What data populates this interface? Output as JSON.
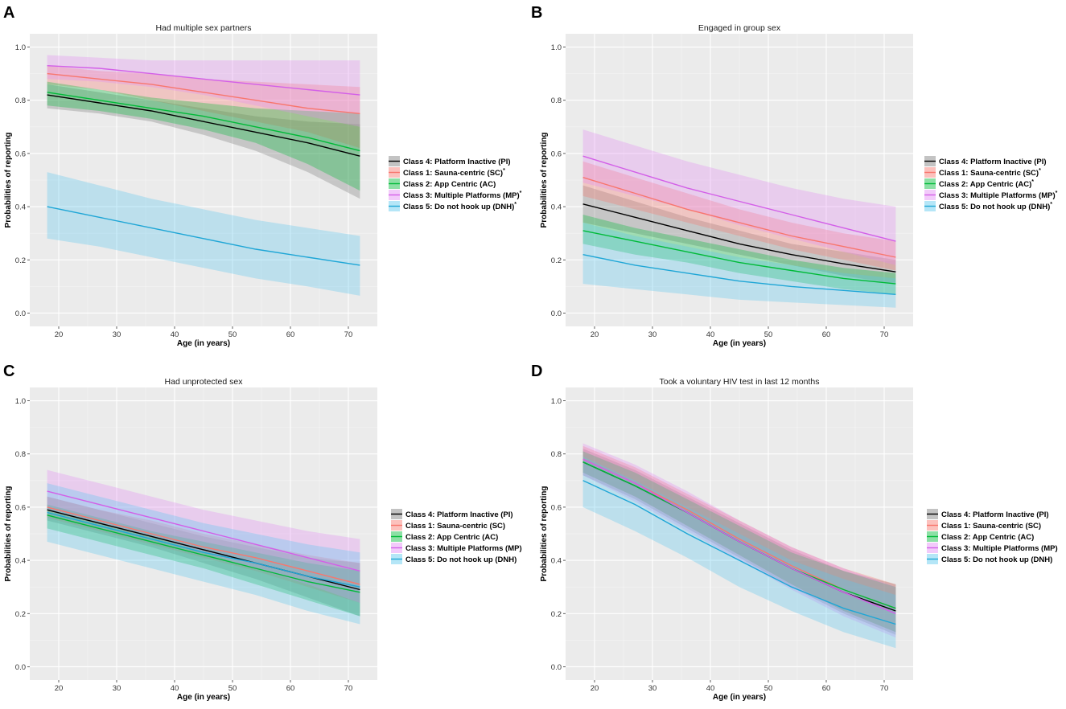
{
  "chart_data": [
    {
      "panel": "A",
      "type": "line",
      "title": "Had multiple sex partners",
      "xlabel": "Age (in years)",
      "ylabel": "Probabilities of reporting",
      "xlim": [
        15,
        75
      ],
      "ylim": [
        -0.05,
        1.05
      ],
      "xticks": [
        20,
        30,
        40,
        50,
        60,
        70
      ],
      "yticks": [
        0.0,
        0.2,
        0.4,
        0.6,
        0.8,
        1.0
      ],
      "tick_labels_y": [
        "0.0",
        "0.2",
        "0.4",
        "0.6",
        "0.8",
        "1.0"
      ],
      "tick_labels_x": [
        "20",
        "30",
        "40",
        "50",
        "60",
        "70"
      ],
      "grid": true,
      "legend_position": "right",
      "x": [
        18,
        27,
        36,
        45,
        54,
        63,
        72
      ],
      "series": [
        {
          "name": "Class 4: Platform Inactive (PI)",
          "star": false,
          "color": "#000000",
          "fill": "#7a7a7a",
          "values": [
            0.82,
            0.79,
            0.76,
            0.72,
            0.68,
            0.64,
            0.59
          ],
          "lower": [
            0.77,
            0.75,
            0.72,
            0.67,
            0.61,
            0.53,
            0.43
          ],
          "upper": [
            0.86,
            0.83,
            0.8,
            0.77,
            0.74,
            0.72,
            0.71
          ]
        },
        {
          "name": "Class 1: Sauna-centric (SC)",
          "star": true,
          "color": "#F8766D",
          "fill": "#F8766D",
          "values": [
            0.9,
            0.88,
            0.86,
            0.83,
            0.8,
            0.77,
            0.75
          ],
          "lower": [
            0.86,
            0.84,
            0.8,
            0.76,
            0.72,
            0.68,
            0.62
          ],
          "upper": [
            0.93,
            0.91,
            0.9,
            0.88,
            0.87,
            0.86,
            0.85
          ]
        },
        {
          "name": "Class 2: App Centric (AC)",
          "star": false,
          "color": "#00BA38",
          "fill": "#00BA38",
          "values": [
            0.83,
            0.8,
            0.77,
            0.74,
            0.7,
            0.66,
            0.61
          ],
          "lower": [
            0.78,
            0.76,
            0.73,
            0.69,
            0.64,
            0.56,
            0.46
          ],
          "upper": [
            0.87,
            0.84,
            0.81,
            0.79,
            0.77,
            0.76,
            0.75
          ]
        },
        {
          "name": "Class 3: Multiple Platforms (MP)",
          "star": true,
          "color": "#D35FE8",
          "fill": "#E38CF4",
          "values": [
            0.93,
            0.92,
            0.9,
            0.88,
            0.86,
            0.84,
            0.82
          ],
          "lower": [
            0.88,
            0.87,
            0.85,
            0.82,
            0.78,
            0.74,
            0.7
          ],
          "upper": [
            0.97,
            0.96,
            0.95,
            0.95,
            0.95,
            0.95,
            0.95
          ]
        },
        {
          "name": "Class 5: Do not hook up (DNH)",
          "star": true,
          "color": "#1FA6D6",
          "fill": "#5BC8EE",
          "values": [
            0.4,
            0.36,
            0.32,
            0.28,
            0.24,
            0.21,
            0.18
          ],
          "lower": [
            0.28,
            0.25,
            0.21,
            0.17,
            0.13,
            0.1,
            0.065
          ],
          "upper": [
            0.53,
            0.48,
            0.43,
            0.39,
            0.35,
            0.32,
            0.29
          ]
        }
      ]
    },
    {
      "panel": "B",
      "type": "line",
      "title": "Engaged in group sex",
      "xlabel": "Age (in years)",
      "ylabel": "Probabilities of reporting",
      "xlim": [
        15,
        75
      ],
      "ylim": [
        -0.05,
        1.05
      ],
      "xticks": [
        20,
        30,
        40,
        50,
        60,
        70
      ],
      "yticks": [
        0.0,
        0.2,
        0.4,
        0.6,
        0.8,
        1.0
      ],
      "tick_labels_y": [
        "0.0",
        "0.2",
        "0.4",
        "0.6",
        "0.8",
        "1.0"
      ],
      "tick_labels_x": [
        "20",
        "30",
        "40",
        "50",
        "60",
        "70"
      ],
      "grid": true,
      "legend_position": "right",
      "x": [
        18,
        27,
        36,
        45,
        54,
        63,
        72
      ],
      "series": [
        {
          "name": "Class 4: Platform Inactive (PI)",
          "star": false,
          "color": "#000000",
          "fill": "#7a7a7a",
          "values": [
            0.41,
            0.36,
            0.31,
            0.26,
            0.22,
            0.185,
            0.155
          ],
          "lower": [
            0.34,
            0.3,
            0.26,
            0.22,
            0.18,
            0.14,
            0.11
          ],
          "upper": [
            0.48,
            0.42,
            0.36,
            0.31,
            0.26,
            0.23,
            0.2
          ]
        },
        {
          "name": "Class 1: Sauna-centric (SC)",
          "star": true,
          "color": "#F8766D",
          "fill": "#F8766D",
          "values": [
            0.51,
            0.45,
            0.39,
            0.34,
            0.29,
            0.25,
            0.21
          ],
          "lower": [
            0.44,
            0.39,
            0.34,
            0.29,
            0.24,
            0.2,
            0.16
          ],
          "upper": [
            0.57,
            0.51,
            0.45,
            0.39,
            0.34,
            0.3,
            0.27
          ]
        },
        {
          "name": "Class 2: App Centric (AC)",
          "star": true,
          "color": "#00BA38",
          "fill": "#00BA38",
          "values": [
            0.31,
            0.27,
            0.23,
            0.19,
            0.16,
            0.13,
            0.11
          ],
          "lower": [
            0.26,
            0.22,
            0.19,
            0.15,
            0.12,
            0.09,
            0.07
          ],
          "upper": [
            0.37,
            0.32,
            0.28,
            0.24,
            0.2,
            0.17,
            0.15
          ]
        },
        {
          "name": "Class 3: Multiple Platforms (MP)",
          "star": true,
          "color": "#D35FE8",
          "fill": "#E38CF4",
          "values": [
            0.59,
            0.53,
            0.47,
            0.42,
            0.37,
            0.32,
            0.27
          ],
          "lower": [
            0.49,
            0.44,
            0.39,
            0.33,
            0.28,
            0.23,
            0.18
          ],
          "upper": [
            0.69,
            0.63,
            0.57,
            0.52,
            0.47,
            0.43,
            0.4
          ]
        },
        {
          "name": "Class 5: Do not hook up (DNH)",
          "star": true,
          "color": "#1FA6D6",
          "fill": "#5BC8EE",
          "values": [
            0.22,
            0.18,
            0.15,
            0.12,
            0.1,
            0.085,
            0.07
          ],
          "lower": [
            0.11,
            0.09,
            0.07,
            0.05,
            0.04,
            0.03,
            0.02
          ],
          "upper": [
            0.34,
            0.29,
            0.25,
            0.21,
            0.18,
            0.15,
            0.13
          ]
        }
      ]
    },
    {
      "panel": "C",
      "type": "line",
      "title": "Had unprotected sex",
      "xlabel": "Age (in years)",
      "ylabel": "Probabilities of reporting",
      "xlim": [
        15,
        75
      ],
      "ylim": [
        -0.05,
        1.05
      ],
      "xticks": [
        20,
        30,
        40,
        50,
        60,
        70
      ],
      "yticks": [
        0.0,
        0.2,
        0.4,
        0.6,
        0.8,
        1.0
      ],
      "tick_labels_y": [
        "0.0",
        "0.2",
        "0.4",
        "0.6",
        "0.8",
        "1.0"
      ],
      "tick_labels_x": [
        "20",
        "30",
        "40",
        "50",
        "60",
        "70"
      ],
      "grid": true,
      "legend_position": "right",
      "x": [
        18,
        27,
        36,
        45,
        54,
        63,
        72
      ],
      "series": [
        {
          "name": "Class 4: Platform Inactive (PI)",
          "star": false,
          "color": "#000000",
          "fill": "#7a7a7a",
          "values": [
            0.59,
            0.54,
            0.49,
            0.44,
            0.39,
            0.34,
            0.29
          ],
          "lower": [
            0.55,
            0.5,
            0.45,
            0.39,
            0.33,
            0.26,
            0.19
          ],
          "upper": [
            0.64,
            0.59,
            0.54,
            0.49,
            0.45,
            0.41,
            0.39
          ]
        },
        {
          "name": "Class 1: Sauna-centric (SC)",
          "star": false,
          "color": "#F8766D",
          "fill": "#F8766D",
          "values": [
            0.6,
            0.55,
            0.5,
            0.45,
            0.41,
            0.36,
            0.31
          ],
          "lower": [
            0.56,
            0.51,
            0.46,
            0.41,
            0.36,
            0.3,
            0.24
          ],
          "upper": [
            0.64,
            0.59,
            0.55,
            0.5,
            0.46,
            0.42,
            0.39
          ]
        },
        {
          "name": "Class 2: App Centric (AC)",
          "star": false,
          "color": "#00BA38",
          "fill": "#00BA38",
          "values": [
            0.57,
            0.52,
            0.47,
            0.42,
            0.37,
            0.32,
            0.28
          ],
          "lower": [
            0.52,
            0.47,
            0.42,
            0.37,
            0.31,
            0.25,
            0.19
          ],
          "upper": [
            0.61,
            0.56,
            0.51,
            0.47,
            0.43,
            0.39,
            0.36
          ]
        },
        {
          "name": "Class 3: Multiple Platforms (MP)",
          "star": false,
          "color": "#D35FE8",
          "fill": "#E38CF4",
          "values": [
            0.66,
            0.61,
            0.56,
            0.51,
            0.46,
            0.41,
            0.36
          ],
          "lower": [
            0.59,
            0.54,
            0.49,
            0.43,
            0.37,
            0.31,
            0.24
          ],
          "upper": [
            0.74,
            0.69,
            0.64,
            0.59,
            0.55,
            0.51,
            0.48
          ]
        },
        {
          "name": "Class 5: Do not hook up (DNH)",
          "star": false,
          "color": "#1FA6D6",
          "fill": "#5BC8EE",
          "values": [
            0.58,
            0.53,
            0.48,
            0.43,
            0.39,
            0.34,
            0.3
          ],
          "lower": [
            0.47,
            0.42,
            0.37,
            0.32,
            0.27,
            0.21,
            0.16
          ],
          "upper": [
            0.69,
            0.64,
            0.59,
            0.54,
            0.5,
            0.46,
            0.43
          ]
        }
      ]
    },
    {
      "panel": "D",
      "type": "line",
      "title": "Took a voluntary HIV test in last 12 months",
      "xlabel": "Age (in years)",
      "ylabel": "Probabilities of reporting",
      "xlim": [
        15,
        75
      ],
      "ylim": [
        -0.05,
        1.05
      ],
      "xticks": [
        20,
        30,
        40,
        50,
        60,
        70
      ],
      "yticks": [
        0.0,
        0.2,
        0.4,
        0.6,
        0.8,
        1.0
      ],
      "tick_labels_y": [
        "0.0",
        "0.2",
        "0.4",
        "0.6",
        "0.8",
        "1.0"
      ],
      "tick_labels_x": [
        "20",
        "30",
        "40",
        "50",
        "60",
        "70"
      ],
      "grid": true,
      "legend_position": "right",
      "x": [
        18,
        27,
        36,
        45,
        54,
        63,
        72
      ],
      "series": [
        {
          "name": "Class 4: Platform Inactive (PI)",
          "star": false,
          "color": "#000000",
          "fill": "#7a7a7a",
          "values": [
            0.77,
            0.68,
            0.58,
            0.47,
            0.37,
            0.28,
            0.21
          ],
          "lower": [
            0.72,
            0.63,
            0.52,
            0.41,
            0.3,
            0.2,
            0.12
          ],
          "upper": [
            0.82,
            0.74,
            0.64,
            0.54,
            0.44,
            0.36,
            0.31
          ]
        },
        {
          "name": "Class 1: Sauna-centric (SC)",
          "star": false,
          "color": "#F8766D",
          "fill": "#F8766D",
          "values": [
            0.78,
            0.69,
            0.59,
            0.48,
            0.38,
            0.29,
            0.22
          ],
          "lower": [
            0.73,
            0.64,
            0.53,
            0.42,
            0.31,
            0.21,
            0.13
          ],
          "upper": [
            0.83,
            0.75,
            0.65,
            0.55,
            0.45,
            0.37,
            0.31
          ]
        },
        {
          "name": "Class 2: App Centric (AC)",
          "star": false,
          "color": "#00BA38",
          "fill": "#00BA38",
          "values": [
            0.77,
            0.68,
            0.58,
            0.47,
            0.37,
            0.29,
            0.22
          ],
          "lower": [
            0.73,
            0.64,
            0.53,
            0.42,
            0.31,
            0.21,
            0.13
          ],
          "upper": [
            0.81,
            0.73,
            0.63,
            0.53,
            0.43,
            0.36,
            0.3
          ]
        },
        {
          "name": "Class 3: Multiple Platforms (MP)",
          "star": false,
          "color": "#D35FE8",
          "fill": "#E38CF4",
          "values": [
            0.78,
            0.69,
            0.58,
            0.47,
            0.37,
            0.28,
            0.2
          ],
          "lower": [
            0.72,
            0.62,
            0.51,
            0.4,
            0.29,
            0.19,
            0.11
          ],
          "upper": [
            0.84,
            0.76,
            0.66,
            0.55,
            0.45,
            0.37,
            0.3
          ]
        },
        {
          "name": "Class 5: Do not hook up (DNH)",
          "star": false,
          "color": "#1FA6D6",
          "fill": "#5BC8EE",
          "values": [
            0.7,
            0.61,
            0.5,
            0.4,
            0.3,
            0.22,
            0.16
          ],
          "lower": [
            0.6,
            0.51,
            0.41,
            0.3,
            0.21,
            0.13,
            0.07
          ],
          "upper": [
            0.79,
            0.7,
            0.6,
            0.5,
            0.4,
            0.33,
            0.27
          ]
        }
      ]
    }
  ]
}
